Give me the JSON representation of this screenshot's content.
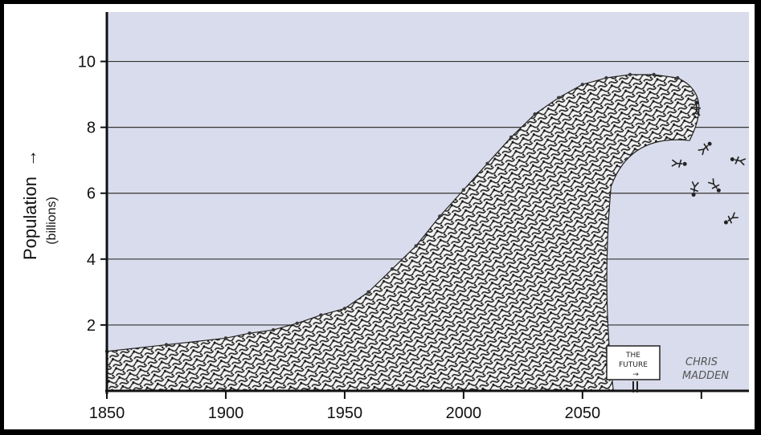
{
  "chart_data": {
    "type": "area",
    "title": "",
    "ylabel": "Population",
    "ylabel_arrow": "→",
    "ylabel_unit": "(billions)",
    "xlabel": "",
    "xlim": [
      1850,
      2120
    ],
    "ylim": [
      0,
      11.5
    ],
    "x_ticks": [
      1850,
      1900,
      1950,
      2000,
      2050
    ],
    "y_ticks": [
      2,
      4,
      6,
      8,
      10
    ],
    "grid": "horizontal",
    "series": [
      {
        "x": [
          1850,
          1875,
          1900,
          1910,
          1920,
          1930,
          1940,
          1950,
          1960,
          1970,
          1980,
          1990,
          2000,
          2010,
          2020,
          2030,
          2040,
          2050,
          2060,
          2070,
          2080,
          2090
        ],
        "values": [
          1.2,
          1.4,
          1.6,
          1.75,
          1.85,
          2.05,
          2.3,
          2.5,
          3.0,
          3.7,
          4.4,
          5.3,
          6.1,
          6.9,
          7.7,
          8.4,
          8.9,
          9.3,
          9.5,
          9.6,
          9.6,
          9.5
        ]
      }
    ],
    "annotations": {
      "sign_line1": "THE",
      "sign_line2": "FUTURE",
      "sign_arrow": "→",
      "artist_line1": "CHRIS",
      "artist_line2": "MADDEN"
    }
  },
  "colors": {
    "plot_background": "#d9dcec",
    "wave": "#3a3a3a",
    "grid": "#333333"
  }
}
